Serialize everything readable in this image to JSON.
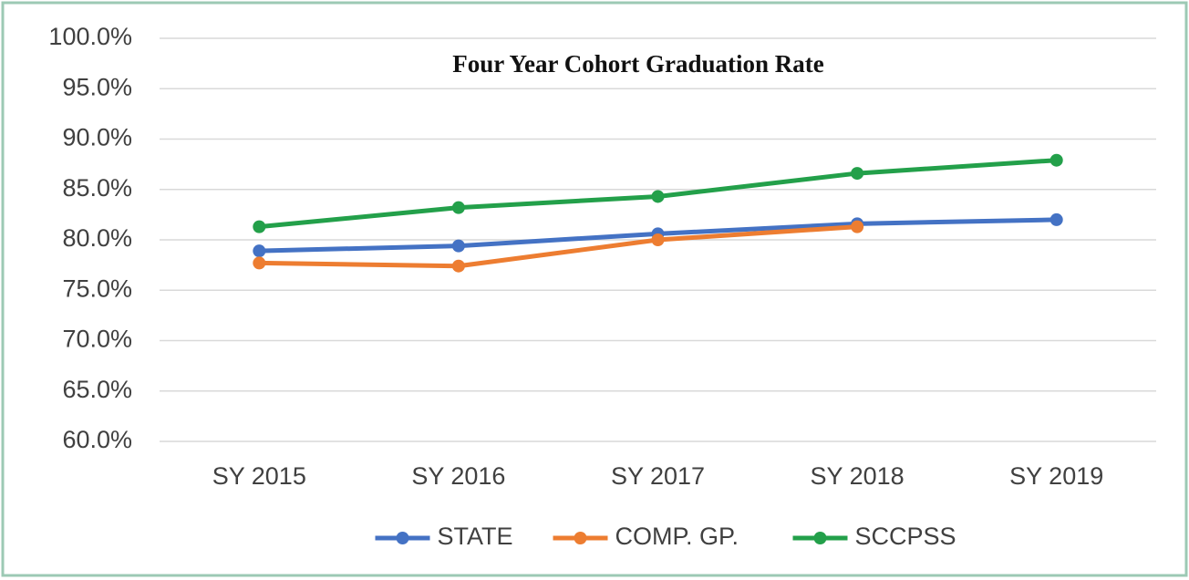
{
  "chart_data": {
    "type": "line",
    "title": "Four Year Cohort Graduation Rate",
    "categories": [
      "SY 2015",
      "SY 2016",
      "SY 2017",
      "SY 2018",
      "SY 2019"
    ],
    "series": [
      {
        "name": "STATE",
        "color": "#4472c4",
        "values": [
          78.9,
          79.4,
          80.6,
          81.6,
          82.0
        ]
      },
      {
        "name": "COMP. GP.",
        "color": "#ed7d31",
        "values": [
          77.7,
          77.4,
          80.0,
          81.3,
          null
        ]
      },
      {
        "name": "SCCPSS",
        "color": "#23a04a",
        "values": [
          81.3,
          83.2,
          84.3,
          86.6,
          87.9
        ]
      }
    ],
    "ylim": [
      60,
      100
    ],
    "yticks": [
      {
        "value": 60,
        "label": "60.0%"
      },
      {
        "value": 65,
        "label": "65.0%"
      },
      {
        "value": 70,
        "label": "70.0%"
      },
      {
        "value": 75,
        "label": "75.0%"
      },
      {
        "value": 80,
        "label": "80.0%"
      },
      {
        "value": 85,
        "label": "85.0%"
      },
      {
        "value": 90,
        "label": "90.0%"
      },
      {
        "value": 95,
        "label": "95.0%"
      },
      {
        "value": 100,
        "label": "100.0%"
      }
    ],
    "grid": true,
    "legend": "bottom"
  }
}
